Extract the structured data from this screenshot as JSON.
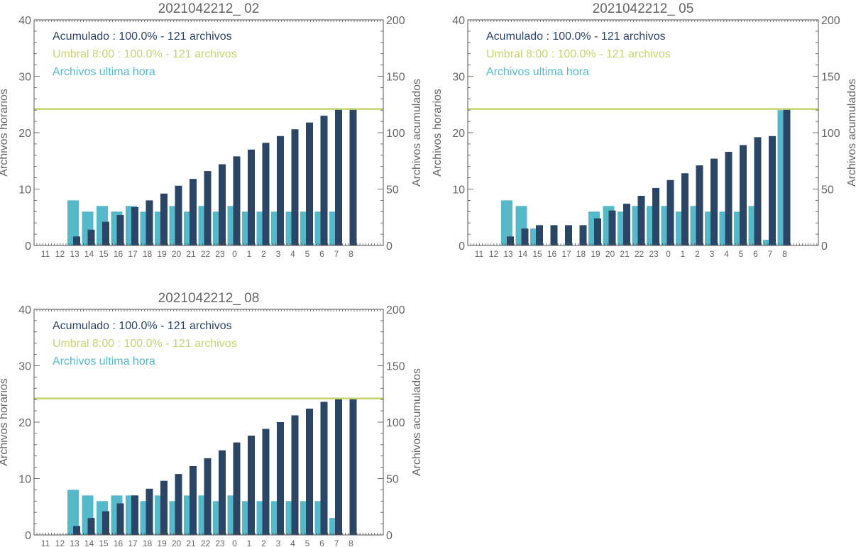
{
  "colors": {
    "hourly": "#55b9c9",
    "cumulative": "#2b4566",
    "threshold": "#c8d46e",
    "axis": "#555555",
    "text": "#666666"
  },
  "chart_data": [
    {
      "type": "bar",
      "title": "2021042212_ 02",
      "ylabel": "Archivos horarios",
      "y2label": "Archivos acumulados",
      "ylim": [
        0,
        40
      ],
      "y2lim": [
        0,
        200
      ],
      "yticks": [
        0,
        10,
        20,
        30,
        40
      ],
      "y2ticks": [
        0,
        50,
        100,
        150,
        200
      ],
      "categories": [
        "11",
        "12",
        "13",
        "14",
        "15",
        "16",
        "17",
        "18",
        "19",
        "20",
        "21",
        "22",
        "23",
        "0",
        "1",
        "2",
        "3",
        "4",
        "5",
        "6",
        "7",
        "8"
      ],
      "legend": [
        "Acumulado : 100.0% - 121 archivos",
        "Umbral 8:00 : 100.0% - 121 archivos",
        "Archivos ultima hora"
      ],
      "threshold": 121,
      "series": [
        {
          "name": "Archivos ultima hora",
          "axis": "left",
          "values": [
            0,
            0,
            8,
            6,
            7,
            6,
            7,
            6,
            6,
            7,
            6,
            7,
            6,
            7,
            6,
            6,
            6,
            6,
            6,
            6,
            6,
            0
          ]
        },
        {
          "name": "Acumulado",
          "axis": "right",
          "values": [
            0,
            0,
            8,
            14,
            21,
            27,
            34,
            40,
            46,
            53,
            59,
            66,
            72,
            79,
            85,
            91,
            97,
            103,
            109,
            115,
            121,
            121
          ]
        }
      ]
    },
    {
      "type": "bar",
      "title": "2021042212_ 05",
      "ylabel": "Archivos horarios",
      "y2label": "Archivos acumulados",
      "ylim": [
        0,
        40
      ],
      "y2lim": [
        0,
        200
      ],
      "yticks": [
        0,
        10,
        20,
        30,
        40
      ],
      "y2ticks": [
        0,
        50,
        100,
        150,
        200
      ],
      "categories": [
        "11",
        "12",
        "13",
        "14",
        "15",
        "16",
        "17",
        "18",
        "19",
        "20",
        "21",
        "22",
        "23",
        "0",
        "1",
        "2",
        "3",
        "4",
        "5",
        "6",
        "7",
        "8"
      ],
      "legend": [
        "Acumulado : 100.0% - 121 archivos",
        "Umbral 8:00 : 100.0% - 121 archivos",
        "Archivos ultima hora"
      ],
      "threshold": 121,
      "series": [
        {
          "name": "Archivos ultima hora",
          "axis": "left",
          "values": [
            0,
            0,
            8,
            7,
            3,
            0,
            0,
            0,
            6,
            7,
            6,
            7,
            7,
            7,
            6,
            7,
            6,
            6,
            6,
            7,
            1,
            24
          ]
        },
        {
          "name": "Acumulado",
          "axis": "right",
          "values": [
            0,
            0,
            8,
            15,
            18,
            18,
            18,
            18,
            24,
            31,
            37,
            44,
            51,
            58,
            64,
            71,
            77,
            83,
            89,
            96,
            97,
            121
          ]
        }
      ]
    },
    {
      "type": "bar",
      "title": "2021042212_ 08",
      "ylabel": "Archivos horarios",
      "y2label": "Archivos acumulados",
      "ylim": [
        0,
        40
      ],
      "y2lim": [
        0,
        200
      ],
      "yticks": [
        0,
        10,
        20,
        30,
        40
      ],
      "y2ticks": [
        0,
        50,
        100,
        150,
        200
      ],
      "categories": [
        "11",
        "12",
        "13",
        "14",
        "15",
        "16",
        "17",
        "18",
        "19",
        "20",
        "21",
        "22",
        "23",
        "0",
        "1",
        "2",
        "3",
        "4",
        "5",
        "6",
        "7",
        "8"
      ],
      "legend": [
        "Acumulado : 100.0% - 121 archivos",
        "Umbral 8:00 : 100.0% - 121 archivos",
        "Archivos ultima hora"
      ],
      "threshold": 121,
      "series": [
        {
          "name": "Archivos ultima hora",
          "axis": "left",
          "values": [
            0,
            0,
            8,
            7,
            6,
            7,
            7,
            6,
            7,
            6,
            7,
            7,
            6,
            7,
            6,
            6,
            6,
            6,
            6,
            6,
            3,
            0
          ]
        },
        {
          "name": "Acumulado",
          "axis": "right",
          "values": [
            0,
            0,
            8,
            15,
            21,
            28,
            35,
            41,
            48,
            54,
            61,
            68,
            75,
            82,
            88,
            94,
            100,
            106,
            112,
            118,
            121,
            121
          ]
        }
      ]
    }
  ]
}
